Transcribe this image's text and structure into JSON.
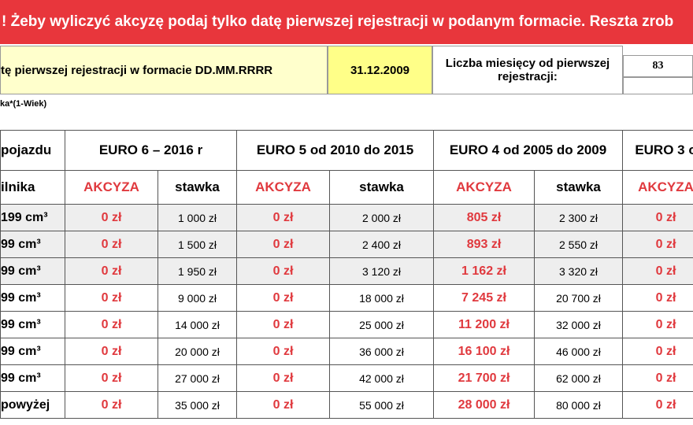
{
  "banner": "! Żeby wyliczyć akcyzę podaj tylko datę pierwszej rejestracji w podanym formacie. Reszta zrob",
  "input": {
    "label": "tę pierwszej rejestracji w formacie DD.MM.RRRR",
    "date": "31.12.2009",
    "months_label": "Liczba miesięcy od pierwszej rejestracji:",
    "months": "83"
  },
  "formula": "ka*(1-Wiek)",
  "table": {
    "groups": [
      "pojazdu",
      "EURO 6 – 2016 r",
      "EURO 5 od 2010 do 2015",
      "EURO 4 od 2005 do 2009",
      "EURO 3 o"
    ],
    "subheader": [
      "ilnika",
      "AKCYZA",
      "stawka",
      "AKCYZA",
      "stawka",
      "AKCYZA",
      "stawka",
      "AKCYZA"
    ],
    "rows": [
      [
        "199 cm³",
        "0 zł",
        "1 000 zł",
        "0 zł",
        "2 000 zł",
        "805 zł",
        "2 300 zł",
        "0 zł"
      ],
      [
        "99 cm³",
        "0 zł",
        "1 500 zł",
        "0 zł",
        "2 400 zł",
        "893 zł",
        "2 550 zł",
        "0 zł"
      ],
      [
        "99 cm³",
        "0 zł",
        "1 950 zł",
        "0 zł",
        "3 120 zł",
        "1 162 zł",
        "3 320 zł",
        "0 zł"
      ],
      [
        "99 cm³",
        "0 zł",
        "9 000 zł",
        "0 zł",
        "18 000 zł",
        "7 245 zł",
        "20 700 zł",
        "0 zł"
      ],
      [
        "99 cm³",
        "0 zł",
        "14 000 zł",
        "0 zł",
        "25 000 zł",
        "11 200 zł",
        "32 000 zł",
        "0 zł"
      ],
      [
        "99 cm³",
        "0 zł",
        "20 000 zł",
        "0 zł",
        "36 000 zł",
        "16 100 zł",
        "46 000 zł",
        "0 zł"
      ],
      [
        "99 cm³",
        "0 zł",
        "27 000 zł",
        "0 zł",
        "42 000 zł",
        "21 700 zł",
        "62 000 zł",
        "0 zł"
      ],
      [
        "powyżej",
        "0 zł",
        "35 000 zł",
        "0 zł",
        "55 000 zł",
        "28 000 zł",
        "80 000 zł",
        "0 zł"
      ]
    ]
  }
}
